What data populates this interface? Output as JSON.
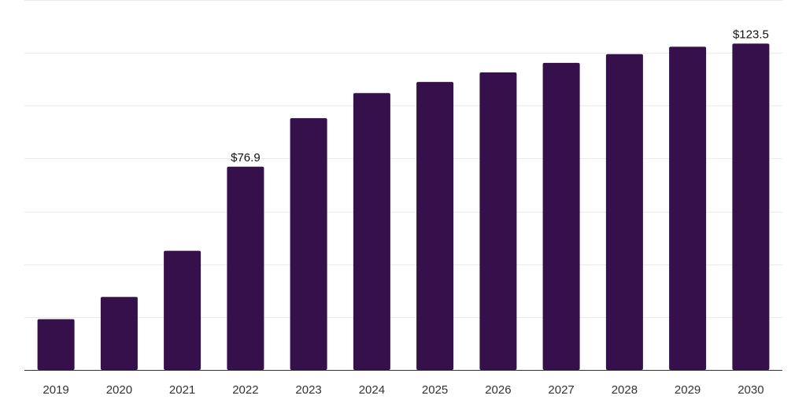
{
  "chart_data": {
    "type": "bar",
    "title": "",
    "xlabel": "",
    "ylabel": "",
    "categories": [
      "2019",
      "2020",
      "2021",
      "2022",
      "2023",
      "2024",
      "2025",
      "2026",
      "2027",
      "2028",
      "2029",
      "2030"
    ],
    "values": [
      19.2,
      27.6,
      45.1,
      76.9,
      95.3,
      104.8,
      109.0,
      112.6,
      116.2,
      119.5,
      122.3,
      123.5
    ],
    "data_labels": [
      {
        "index": 3,
        "text": "$76.9"
      },
      {
        "index": 11,
        "text": "$123.5"
      }
    ],
    "ylim": [
      0,
      140
    ],
    "y_gridlines": [
      20,
      40,
      60,
      80,
      100,
      120,
      140
    ],
    "grid": true,
    "bar_color": "#36104a",
    "grid_color": "#ebebeb",
    "axis_color": "#333333"
  }
}
